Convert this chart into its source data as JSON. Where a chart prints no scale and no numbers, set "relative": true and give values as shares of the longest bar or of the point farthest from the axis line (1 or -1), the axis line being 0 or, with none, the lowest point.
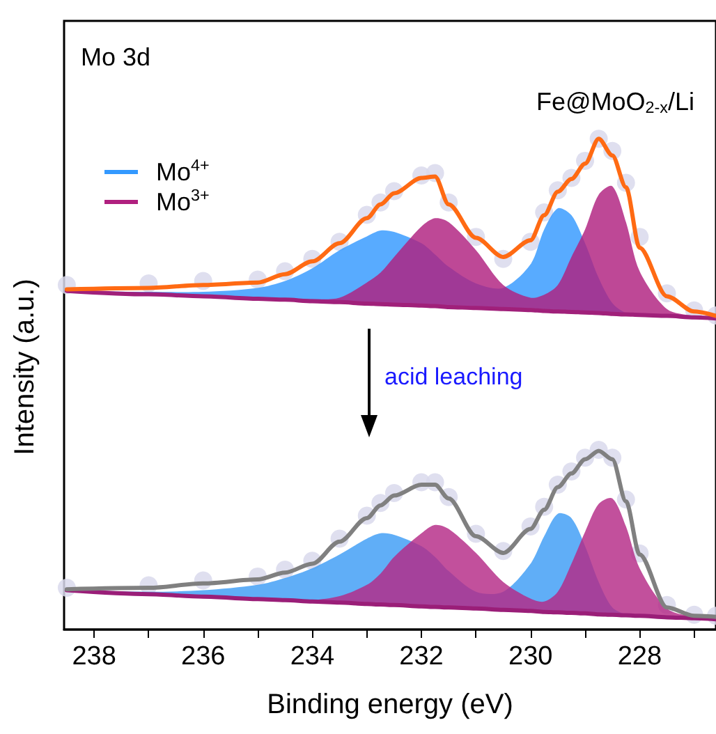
{
  "chart_data": {
    "type": "area",
    "xlabel": "Binding energy (eV)",
    "ylabel": "Intensity (a.u.)",
    "relative": true,
    "xlim": [
      238.55,
      226.6
    ],
    "xticks": [
      238,
      {
        "value": 237,
        "label": null
      },
      236,
      {
        "value": 235,
        "label": null
      },
      234,
      {
        "value": 233,
        "label": null
      },
      232,
      {
        "value": 231,
        "label": null
      },
      230,
      {
        "value": 229,
        "label": null
      },
      228,
      {
        "value": 227,
        "label": null
      }
    ],
    "tick_labels": "x",
    "grid": false,
    "legend": "top left",
    "marker": "none",
    "annotations": [
      "Mo 3d",
      "Fe@MoO$_{2-x}$/Li",
      "acid leaching"
    ],
    "x": [
      238.5,
      237,
      236,
      235,
      234.5,
      234,
      233.5,
      233,
      232.75,
      232.5,
      232,
      231.75,
      231.5,
      231,
      230.5,
      230,
      229.75,
      229.5,
      229.25,
      229,
      228.75,
      228.5,
      228.25,
      228,
      227.5,
      227,
      226.6
    ],
    "series": [
      {
        "type": "scatter",
        "marker": "circle",
        "color": "#d9d9ec",
        "values": [
          0.702,
          0.705,
          0.71,
          0.713,
          0.73,
          0.755,
          0.79,
          0.845,
          0.87,
          0.893,
          0.925,
          0.93,
          0.87,
          0.8,
          0.755,
          0.79,
          0.85,
          0.895,
          0.92,
          0.955,
          1.0,
          0.975,
          0.91,
          0.8,
          0.685,
          0.65,
          0.64
        ]
      },
      {
        "type": "line",
        "color": "#a0207a",
        "values": [
          0.69,
          0.683,
          0.679,
          0.674,
          0.672,
          0.669,
          0.667,
          0.664,
          0.663,
          0.662,
          0.66,
          0.659,
          0.657,
          0.655,
          0.653,
          0.651,
          0.649,
          0.648,
          0.647,
          0.646,
          0.645,
          0.643,
          0.642,
          0.641,
          0.639,
          0.636,
          0.634
        ]
      },
      {
        "name": "Mo$^{4+}$",
        "color": "#3399ff",
        "values": [
          0.69,
          0.688,
          0.688,
          0.696,
          0.71,
          0.736,
          0.773,
          0.801,
          0.813,
          0.81,
          0.787,
          0.764,
          0.739,
          0.705,
          0.696,
          0.744,
          0.815,
          0.858,
          0.844,
          0.787,
          0.716,
          0.665,
          0.645,
          0.642,
          0.639,
          0.636,
          0.634
        ]
      },
      {
        "name": "Mo$^{3+}$",
        "color": "#b0207f",
        "values": [
          0.69,
          0.685,
          0.679,
          0.676,
          0.675,
          0.673,
          0.676,
          0.707,
          0.727,
          0.759,
          0.821,
          0.838,
          0.83,
          0.773,
          0.702,
          0.676,
          0.682,
          0.702,
          0.759,
          0.815,
          0.886,
          0.903,
          0.83,
          0.73,
          0.653,
          0.639,
          0.635
        ]
      },
      {
        "type": "line",
        "color": "#ff6a13",
        "values": [
          0.693,
          0.696,
          0.702,
          0.707,
          0.724,
          0.75,
          0.787,
          0.838,
          0.866,
          0.889,
          0.92,
          0.923,
          0.866,
          0.798,
          0.759,
          0.793,
          0.844,
          0.892,
          0.918,
          0.949,
          1.0,
          0.966,
          0.901,
          0.778,
          0.679,
          0.648,
          0.639
        ]
      },
      {
        "type": "scatter",
        "marker": "circle",
        "color": "#d9d9ec",
        "values": [
          0.085,
          0.09,
          0.1,
          0.108,
          0.122,
          0.14,
          0.185,
          0.232,
          0.258,
          0.278,
          0.3,
          0.3,
          0.27,
          0.195,
          0.16,
          0.21,
          0.25,
          0.295,
          0.322,
          0.35,
          0.366,
          0.35,
          0.265,
          0.155,
          0.05,
          0.03,
          0.028
        ]
      },
      {
        "type": "line",
        "color": "#9a1e78",
        "values": [
          0.08,
          0.072,
          0.067,
          0.062,
          0.06,
          0.057,
          0.055,
          0.052,
          0.051,
          0.05,
          0.047,
          0.046,
          0.045,
          0.043,
          0.04,
          0.038,
          0.036,
          0.035,
          0.034,
          0.033,
          0.031,
          0.03,
          0.029,
          0.028,
          0.025,
          0.023,
          0.021
        ]
      },
      {
        "color": "#3d9cf5",
        "values": [
          0.08,
          0.077,
          0.08,
          0.091,
          0.105,
          0.125,
          0.153,
          0.185,
          0.196,
          0.193,
          0.17,
          0.148,
          0.119,
          0.077,
          0.077,
          0.134,
          0.19,
          0.236,
          0.227,
          0.17,
          0.097,
          0.045,
          0.031,
          0.028,
          0.025,
          0.023,
          0.021
        ]
      },
      {
        "color": "#b52a86",
        "values": [
          0.08,
          0.074,
          0.068,
          0.063,
          0.061,
          0.06,
          0.068,
          0.091,
          0.114,
          0.148,
          0.196,
          0.213,
          0.205,
          0.156,
          0.097,
          0.063,
          0.057,
          0.077,
          0.134,
          0.199,
          0.256,
          0.267,
          0.21,
          0.125,
          0.043,
          0.026,
          0.021
        ]
      },
      {
        "type": "line",
        "color": "#808080",
        "values": [
          0.082,
          0.085,
          0.094,
          0.102,
          0.116,
          0.134,
          0.179,
          0.227,
          0.253,
          0.273,
          0.295,
          0.295,
          0.267,
          0.19,
          0.156,
          0.205,
          0.244,
          0.29,
          0.318,
          0.347,
          0.364,
          0.347,
          0.261,
          0.153,
          0.045,
          0.028,
          0.026
        ]
      }
    ]
  }
}
